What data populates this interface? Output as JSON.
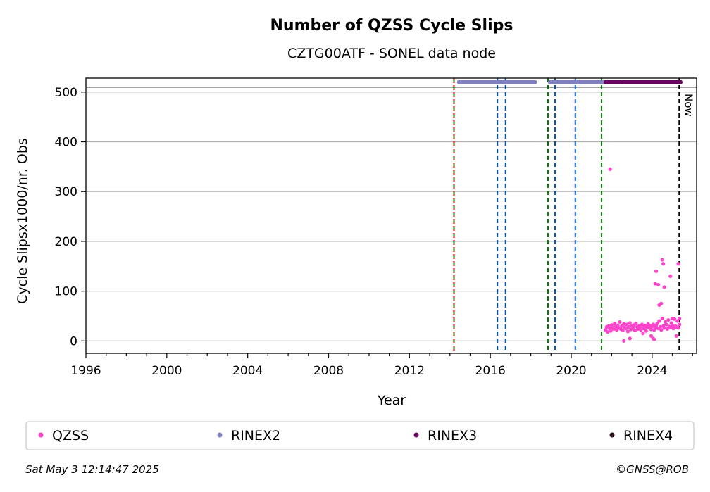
{
  "chart_data": {
    "type": "scatter",
    "title": "Number of QZSS Cycle Slips",
    "subtitle": "CZTG00ATF - SONEL data node",
    "xlabel": "Year",
    "ylabel": "Cycle Slipsx1000/nr. Obs",
    "xlim": [
      1996,
      2026.2
    ],
    "ylim": [
      -25,
      528
    ],
    "x_ticks": [
      1996,
      2000,
      2004,
      2008,
      2012,
      2016,
      2020,
      2024
    ],
    "y_ticks": [
      0,
      100,
      200,
      300,
      400,
      500
    ],
    "grid": "horizontal",
    "reference_line_y": 510,
    "now_label": "Now",
    "now_x": 2025.34,
    "vertical_lines": [
      {
        "x": 2014.2,
        "kind": "green"
      },
      {
        "x": 2014.2,
        "kind": "red"
      },
      {
        "x": 2016.35,
        "kind": "blue"
      },
      {
        "x": 2016.75,
        "kind": "blue"
      },
      {
        "x": 2018.85,
        "kind": "green"
      },
      {
        "x": 2019.2,
        "kind": "blue"
      },
      {
        "x": 2020.2,
        "kind": "blue"
      },
      {
        "x": 2021.5,
        "kind": "green"
      }
    ],
    "rinex_bars": [
      {
        "series": "RINEX2",
        "start": 2014.45,
        "end": 2018.2
      },
      {
        "series": "RINEX2",
        "start": 2018.95,
        "end": 2021.7
      },
      {
        "series": "RINEX3",
        "start": 2021.7,
        "end": 2022.45
      },
      {
        "series": "RINEX3",
        "start": 2022.55,
        "end": 2025.4
      }
    ],
    "series": [
      {
        "name": "QZSS",
        "x": [
          2021.7,
          2021.75,
          2021.8,
          2021.85,
          2021.9,
          2021.95,
          2022.0,
          2022.05,
          2022.1,
          2022.15,
          2022.2,
          2022.25,
          2022.3,
          2022.35,
          2022.4,
          2022.45,
          2022.5,
          2022.55,
          2022.6,
          2022.65,
          2022.7,
          2022.75,
          2022.8,
          2022.85,
          2022.9,
          2022.95,
          2023.0,
          2023.05,
          2023.1,
          2023.15,
          2023.2,
          2023.25,
          2023.3,
          2023.35,
          2023.4,
          2023.45,
          2023.5,
          2023.55,
          2023.6,
          2023.65,
          2023.7,
          2023.75,
          2023.8,
          2023.85,
          2023.9,
          2023.95,
          2024.0,
          2024.05,
          2024.1,
          2024.15,
          2024.2,
          2024.25,
          2024.3,
          2024.35,
          2024.4,
          2024.45,
          2024.5,
          2024.55,
          2024.6,
          2024.65,
          2024.7,
          2024.75,
          2024.8,
          2024.85,
          2024.9,
          2024.95,
          2025.0,
          2025.05,
          2025.1,
          2025.15,
          2025.2,
          2025.25,
          2025.3,
          2025.35,
          2021.92,
          2022.6,
          2022.9,
          2023.55,
          2023.95,
          2024.05,
          2024.1,
          2024.15,
          2024.2,
          2024.3,
          2024.35,
          2024.45,
          2024.5,
          2024.55,
          2024.6,
          2024.9,
          2025.0,
          2025.2,
          2025.3,
          2025.35
        ],
        "y": [
          22,
          28,
          18,
          30,
          25,
          20,
          32,
          27,
          24,
          35,
          29,
          22,
          31,
          26,
          38,
          24,
          30,
          21,
          34,
          27,
          25,
          33,
          19,
          28,
          36,
          23,
          30,
          26,
          32,
          21,
          35,
          28,
          24,
          30,
          27,
          22,
          33,
          29,
          25,
          31,
          20,
          28,
          34,
          26,
          30,
          23,
          29,
          33,
          22,
          27,
          31,
          35,
          25,
          40,
          28,
          22,
          45,
          30,
          26,
          38,
          33,
          24,
          42,
          29,
          27,
          36,
          31,
          25,
          44,
          30,
          28,
          40,
          26,
          33,
          345,
          0,
          5,
          15,
          10,
          5,
          3,
          115,
          140,
          113,
          72,
          75,
          163,
          155,
          108,
          130,
          45,
          10,
          155,
          45
        ]
      }
    ],
    "legend": {
      "placement": "bottom",
      "entries": [
        "QZSS",
        "RINEX2",
        "RINEX3",
        "RINEX4"
      ]
    },
    "colors": {
      "QZSS": "#ff44cc",
      "RINEX2": "#8080c0",
      "RINEX3": "#6a005f",
      "RINEX4": "#2a0a1a",
      "grid": "#b0b0b0",
      "green_line": "#007f00",
      "blue_line": "#0055bb",
      "red_line": "#cc0000"
    }
  },
  "footer": {
    "timestamp": "Sat May  3 12:14:47 2025",
    "copyright": "©GNSS@ROB"
  }
}
